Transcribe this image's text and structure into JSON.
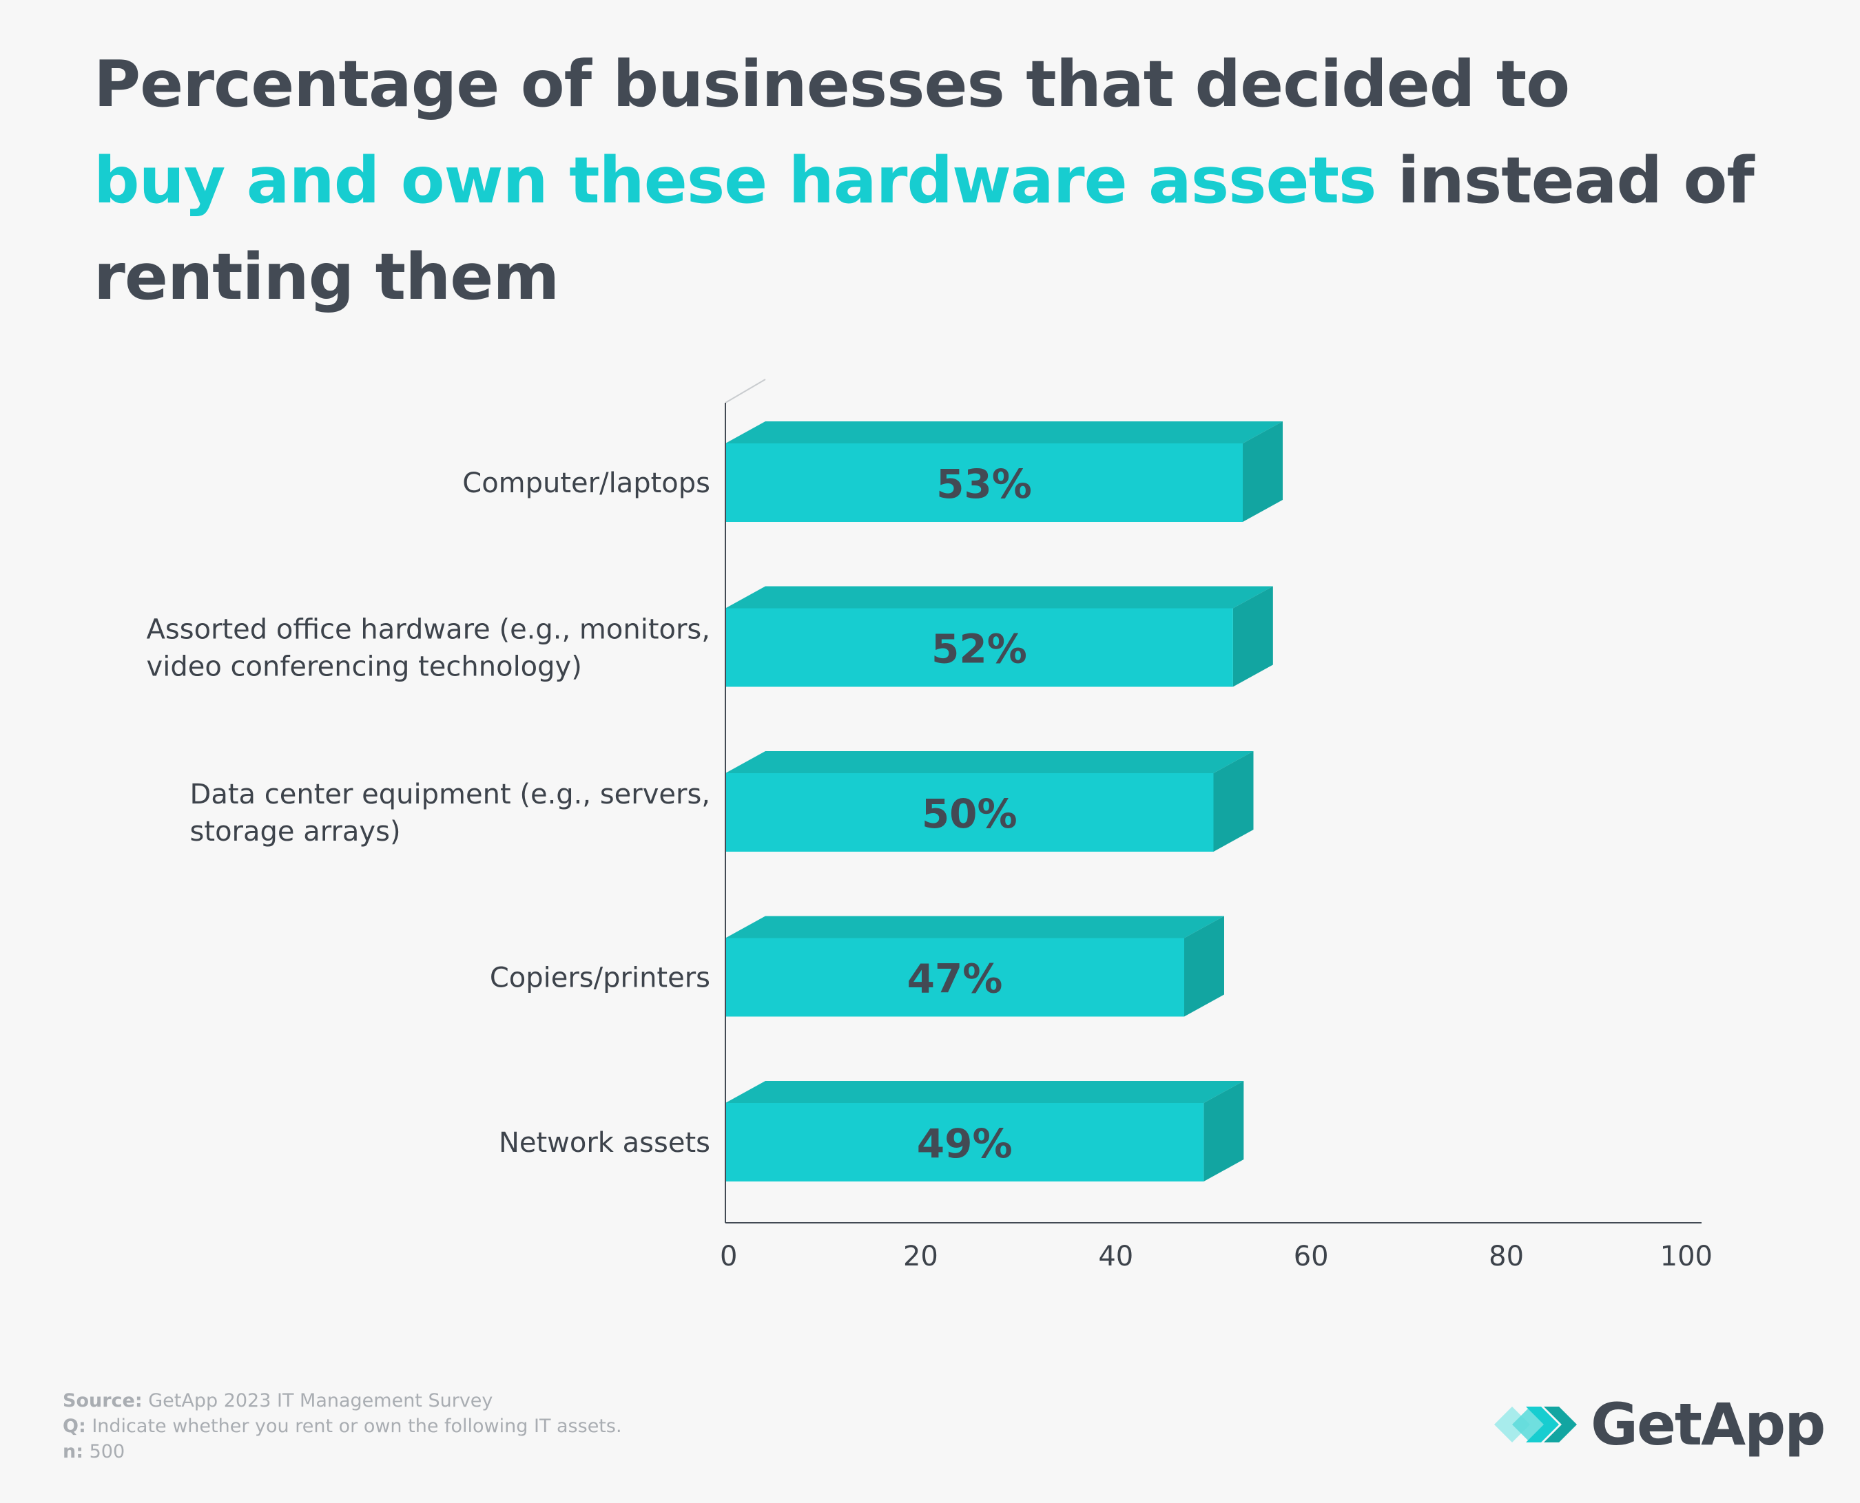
{
  "title": {
    "part1": "Percentage of businesses that decided to",
    "highlight": "buy and own these hardware assets",
    "part2": "instead of renting them"
  },
  "chart_data": {
    "type": "bar",
    "orientation": "horizontal",
    "categories": [
      [
        "Computer/laptops"
      ],
      [
        "Assorted office hardware (e.g., monitors,",
        "video conferencing technology)"
      ],
      [
        "Data center equipment (e.g., servers,",
        "storage arrays)"
      ],
      [
        "Copiers/printers"
      ],
      [
        "Network assets"
      ]
    ],
    "values": [
      53,
      52,
      50,
      47,
      49
    ],
    "value_labels": [
      "53%",
      "52%",
      "50%",
      "47%",
      "49%"
    ],
    "xlim": [
      0,
      100
    ],
    "xticks": [
      0,
      20,
      40,
      60,
      80,
      100
    ],
    "xlabel": "",
    "ylabel": "",
    "colors": {
      "front": "#17cdd0",
      "top": "#15b8b6",
      "side": "#12a5a1",
      "label": "#434a54",
      "axis": "#434a54"
    }
  },
  "footer": {
    "source_label": "Source:",
    "source_text": "GetApp 2023 IT Management Survey",
    "q_label": "Q:",
    "q_text": "Indicate whether you rent or own the following IT assets.",
    "n_label": "n:",
    "n_text": "500"
  },
  "logo": {
    "text": "GetApp",
    "colors": [
      "#a8ecec",
      "#5fdbdb",
      "#17cdd0",
      "#12a5a1"
    ]
  }
}
